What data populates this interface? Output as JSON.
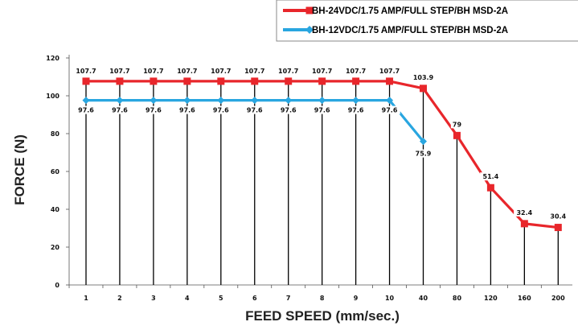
{
  "chart_data": {
    "type": "line",
    "xlabel": "FEED SPEED (mm/sec.)",
    "ylabel": "FORCE (N)",
    "ylim": [
      0,
      120
    ],
    "yticks": [
      0,
      20,
      40,
      60,
      80,
      100,
      120
    ],
    "categories": [
      "1",
      "2",
      "3",
      "4",
      "5",
      "6",
      "7",
      "8",
      "9",
      "10",
      "40",
      "80",
      "120",
      "160",
      "200"
    ],
    "series": [
      {
        "name": "BH-24VDC/1.75 AMP/FULL STEP/BH MSD-2A",
        "color": "#e8262b",
        "marker": "square",
        "values": [
          107.7,
          107.7,
          107.7,
          107.7,
          107.7,
          107.7,
          107.7,
          107.7,
          107.7,
          107.7,
          103.9,
          79,
          51.4,
          32.4,
          30.4
        ]
      },
      {
        "name": "BH-12VDC/1.75 AMP/FULL STEP/BH MSD-2A",
        "color": "#29a6e0",
        "marker": "diamond",
        "values": [
          97.6,
          97.6,
          97.6,
          97.6,
          97.6,
          97.6,
          97.6,
          97.6,
          97.6,
          97.6,
          75.9,
          null,
          null,
          null,
          null
        ]
      }
    ],
    "grid": false,
    "drop_lines": true,
    "legend_position": "top-right"
  }
}
